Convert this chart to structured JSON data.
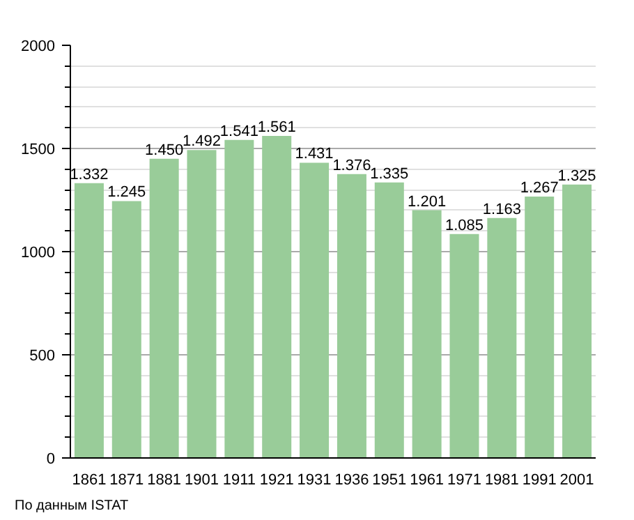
{
  "chart_data": {
    "type": "bar",
    "categories": [
      "1861",
      "1871",
      "1881",
      "1901",
      "1911",
      "1921",
      "1931",
      "1936",
      "1951",
      "1961",
      "1971",
      "1981",
      "1991",
      "2001"
    ],
    "values": [
      1332,
      1245,
      1450,
      1492,
      1541,
      1561,
      1431,
      1376,
      1335,
      1201,
      1085,
      1163,
      1267,
      1325
    ],
    "value_labels": [
      "1.332",
      "1.245",
      "1.450",
      "1.492",
      "1.541",
      "1.561",
      "1.431",
      "1.376",
      "1.335",
      "1.201",
      "1.085",
      "1.163",
      "1.267",
      "1.325"
    ],
    "color": "#99cc99",
    "ylim": [
      0,
      2000
    ],
    "yticks": [
      0,
      500,
      1000,
      1500,
      2000
    ],
    "grid": "y",
    "annotations": [
      "По данным ISTAT"
    ]
  }
}
